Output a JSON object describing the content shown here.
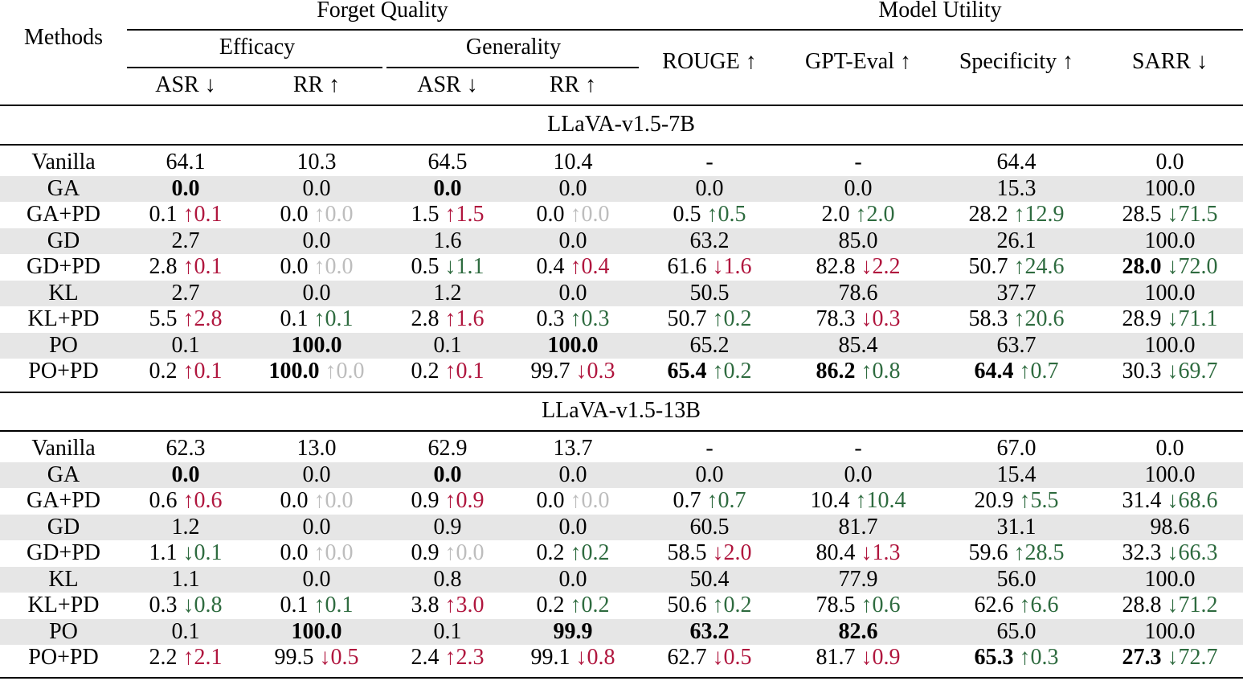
{
  "headers": {
    "methods": "Methods",
    "forget_quality": "Forget Quality",
    "model_utility": "Model Utility",
    "efficacy": "Efficacy",
    "generality": "Generality",
    "cols": [
      "ASR ↓",
      "RR ↑",
      "ASR ↓",
      "RR ↑",
      "ROUGE ↑",
      "GPT-Eval ↑",
      "Specificity ↑",
      "SARR ↓"
    ]
  },
  "sections": [
    {
      "title": "LLaVA-v1.5-7B",
      "rows": [
        {
          "method": "Vanilla",
          "shaded": false,
          "cells": [
            {
              "v": "64.1"
            },
            {
              "v": "10.3"
            },
            {
              "v": "64.5"
            },
            {
              "v": "10.4"
            },
            {
              "v": "-"
            },
            {
              "v": "-"
            },
            {
              "v": "64.4"
            },
            {
              "v": "0.0"
            }
          ]
        },
        {
          "method": "GA",
          "shaded": true,
          "cells": [
            {
              "v": "0.0",
              "b": true
            },
            {
              "v": "0.0"
            },
            {
              "v": "0.0",
              "b": true
            },
            {
              "v": "0.0"
            },
            {
              "v": "0.0"
            },
            {
              "v": "0.0"
            },
            {
              "v": "15.3"
            },
            {
              "v": "100.0"
            }
          ]
        },
        {
          "method": "GA+PD",
          "shaded": false,
          "cells": [
            {
              "v": "0.1",
              "d": "↑0.1",
              "c": "bad"
            },
            {
              "v": "0.0",
              "d": "↑0.0",
              "c": "zero"
            },
            {
              "v": "1.5",
              "d": "↑1.5",
              "c": "bad"
            },
            {
              "v": "0.0",
              "d": "↑0.0",
              "c": "zero"
            },
            {
              "v": "0.5",
              "d": "↑0.5",
              "c": "good"
            },
            {
              "v": "2.0",
              "d": "↑2.0",
              "c": "good"
            },
            {
              "v": "28.2",
              "d": "↑12.9",
              "c": "good"
            },
            {
              "v": "28.5",
              "d": "↓71.5",
              "c": "good"
            }
          ]
        },
        {
          "method": "GD",
          "shaded": true,
          "cells": [
            {
              "v": "2.7"
            },
            {
              "v": "0.0"
            },
            {
              "v": "1.6"
            },
            {
              "v": "0.0"
            },
            {
              "v": "63.2"
            },
            {
              "v": "85.0"
            },
            {
              "v": "26.1"
            },
            {
              "v": "100.0"
            }
          ]
        },
        {
          "method": "GD+PD",
          "shaded": false,
          "cells": [
            {
              "v": "2.8",
              "d": "↑0.1",
              "c": "bad"
            },
            {
              "v": "0.0",
              "d": "↑0.0",
              "c": "zero"
            },
            {
              "v": "0.5",
              "d": "↓1.1",
              "c": "good"
            },
            {
              "v": "0.4",
              "d": "↑0.4",
              "c": "bad"
            },
            {
              "v": "61.6",
              "d": "↓1.6",
              "c": "bad"
            },
            {
              "v": "82.8",
              "d": "↓2.2",
              "c": "bad"
            },
            {
              "v": "50.7",
              "d": "↑24.6",
              "c": "good"
            },
            {
              "v": "28.0",
              "b": true,
              "d": "↓72.0",
              "c": "good"
            }
          ]
        },
        {
          "method": "KL",
          "shaded": true,
          "cells": [
            {
              "v": "2.7"
            },
            {
              "v": "0.0"
            },
            {
              "v": "1.2"
            },
            {
              "v": "0.0"
            },
            {
              "v": "50.5"
            },
            {
              "v": "78.6"
            },
            {
              "v": "37.7"
            },
            {
              "v": "100.0"
            }
          ]
        },
        {
          "method": "KL+PD",
          "shaded": false,
          "cells": [
            {
              "v": "5.5",
              "d": "↑2.8",
              "c": "bad"
            },
            {
              "v": "0.1",
              "d": "↑0.1",
              "c": "good"
            },
            {
              "v": "2.8",
              "d": "↑1.6",
              "c": "bad"
            },
            {
              "v": "0.3",
              "d": "↑0.3",
              "c": "good"
            },
            {
              "v": "50.7",
              "d": "↑0.2",
              "c": "good"
            },
            {
              "v": "78.3",
              "d": "↓0.3",
              "c": "bad"
            },
            {
              "v": "58.3",
              "d": "↑20.6",
              "c": "good"
            },
            {
              "v": "28.9",
              "d": "↓71.1",
              "c": "good"
            }
          ]
        },
        {
          "method": "PO",
          "shaded": true,
          "cells": [
            {
              "v": "0.1"
            },
            {
              "v": "100.0",
              "b": true
            },
            {
              "v": "0.1"
            },
            {
              "v": "100.0",
              "b": true
            },
            {
              "v": "65.2"
            },
            {
              "v": "85.4"
            },
            {
              "v": "63.7"
            },
            {
              "v": "100.0"
            }
          ]
        },
        {
          "method": "PO+PD",
          "shaded": false,
          "cells": [
            {
              "v": "0.2",
              "d": "↑0.1",
              "c": "bad"
            },
            {
              "v": "100.0",
              "b": true,
              "d": "↑0.0",
              "c": "zero"
            },
            {
              "v": "0.2",
              "d": "↑0.1",
              "c": "bad"
            },
            {
              "v": "99.7",
              "d": "↓0.3",
              "c": "bad"
            },
            {
              "v": "65.4",
              "b": true,
              "d": "↑0.2",
              "c": "good"
            },
            {
              "v": "86.2",
              "b": true,
              "d": "↑0.8",
              "c": "good"
            },
            {
              "v": "64.4",
              "b": true,
              "d": "↑0.7",
              "c": "good"
            },
            {
              "v": "30.3",
              "d": "↓69.7",
              "c": "good"
            }
          ]
        }
      ]
    },
    {
      "title": "LLaVA-v1.5-13B",
      "rows": [
        {
          "method": "Vanilla",
          "shaded": false,
          "cells": [
            {
              "v": "62.3"
            },
            {
              "v": "13.0"
            },
            {
              "v": "62.9"
            },
            {
              "v": "13.7"
            },
            {
              "v": "-"
            },
            {
              "v": "-"
            },
            {
              "v": "67.0"
            },
            {
              "v": "0.0"
            }
          ]
        },
        {
          "method": "GA",
          "shaded": true,
          "cells": [
            {
              "v": "0.0",
              "b": true
            },
            {
              "v": "0.0"
            },
            {
              "v": "0.0",
              "b": true
            },
            {
              "v": "0.0"
            },
            {
              "v": "0.0"
            },
            {
              "v": "0.0"
            },
            {
              "v": "15.4"
            },
            {
              "v": "100.0"
            }
          ]
        },
        {
          "method": "GA+PD",
          "shaded": false,
          "cells": [
            {
              "v": "0.6",
              "d": "↑0.6",
              "c": "bad"
            },
            {
              "v": "0.0",
              "d": "↑0.0",
              "c": "zero"
            },
            {
              "v": "0.9",
              "d": "↑0.9",
              "c": "bad"
            },
            {
              "v": "0.0",
              "d": "↑0.0",
              "c": "zero"
            },
            {
              "v": "0.7",
              "d": "↑0.7",
              "c": "good"
            },
            {
              "v": "10.4",
              "d": "↑10.4",
              "c": "good"
            },
            {
              "v": "20.9",
              "d": "↑5.5",
              "c": "good"
            },
            {
              "v": "31.4",
              "d": "↓68.6",
              "c": "good"
            }
          ]
        },
        {
          "method": "GD",
          "shaded": true,
          "cells": [
            {
              "v": "1.2"
            },
            {
              "v": "0.0"
            },
            {
              "v": "0.9"
            },
            {
              "v": "0.0"
            },
            {
              "v": "60.5"
            },
            {
              "v": "81.7"
            },
            {
              "v": "31.1"
            },
            {
              "v": "98.6"
            }
          ]
        },
        {
          "method": "GD+PD",
          "shaded": false,
          "cells": [
            {
              "v": "1.1",
              "d": "↓0.1",
              "c": "good"
            },
            {
              "v": "0.0",
              "d": "↑0.0",
              "c": "zero"
            },
            {
              "v": "0.9",
              "d": "↑0.0",
              "c": "zero"
            },
            {
              "v": "0.2",
              "d": "↑0.2",
              "c": "good"
            },
            {
              "v": "58.5",
              "d": "↓2.0",
              "c": "bad"
            },
            {
              "v": "80.4",
              "d": "↓1.3",
              "c": "bad"
            },
            {
              "v": "59.6",
              "d": "↑28.5",
              "c": "good"
            },
            {
              "v": "32.3",
              "d": "↓66.3",
              "c": "good"
            }
          ]
        },
        {
          "method": "KL",
          "shaded": true,
          "cells": [
            {
              "v": "1.1"
            },
            {
              "v": "0.0"
            },
            {
              "v": "0.8"
            },
            {
              "v": "0.0"
            },
            {
              "v": "50.4"
            },
            {
              "v": "77.9"
            },
            {
              "v": "56.0"
            },
            {
              "v": "100.0"
            }
          ]
        },
        {
          "method": "KL+PD",
          "shaded": false,
          "cells": [
            {
              "v": "0.3",
              "d": "↓0.8",
              "c": "good"
            },
            {
              "v": "0.1",
              "d": "↑0.1",
              "c": "good"
            },
            {
              "v": "3.8",
              "d": "↑3.0",
              "c": "bad"
            },
            {
              "v": "0.2",
              "d": "↑0.2",
              "c": "good"
            },
            {
              "v": "50.6",
              "d": "↑0.2",
              "c": "good"
            },
            {
              "v": "78.5",
              "d": "↑0.6",
              "c": "good"
            },
            {
              "v": "62.6",
              "d": "↑6.6",
              "c": "good"
            },
            {
              "v": "28.8",
              "d": "↓71.2",
              "c": "good"
            }
          ]
        },
        {
          "method": "PO",
          "shaded": true,
          "cells": [
            {
              "v": "0.1"
            },
            {
              "v": "100.0",
              "b": true
            },
            {
              "v": "0.1"
            },
            {
              "v": "99.9",
              "b": true
            },
            {
              "v": "63.2",
              "b": true
            },
            {
              "v": "82.6",
              "b": true
            },
            {
              "v": "65.0"
            },
            {
              "v": "100.0"
            }
          ]
        },
        {
          "method": "PO+PD",
          "shaded": false,
          "cells": [
            {
              "v": "2.2",
              "d": "↑2.1",
              "c": "bad"
            },
            {
              "v": "99.5",
              "d": "↓0.5",
              "c": "bad"
            },
            {
              "v": "2.4",
              "d": "↑2.3",
              "c": "bad"
            },
            {
              "v": "99.1",
              "d": "↓0.8",
              "c": "bad"
            },
            {
              "v": "62.7",
              "d": "↓0.5",
              "c": "bad"
            },
            {
              "v": "81.7",
              "d": "↓0.9",
              "c": "bad"
            },
            {
              "v": "65.3",
              "b": true,
              "d": "↑0.3",
              "c": "good"
            },
            {
              "v": "27.3",
              "b": true,
              "d": "↓72.7",
              "c": "good"
            }
          ]
        }
      ]
    }
  ],
  "colors": {
    "bad": "#b0163e",
    "good": "#2e6b3f",
    "zero": "#bdbdbd",
    "shade": "#e6e6e6"
  }
}
